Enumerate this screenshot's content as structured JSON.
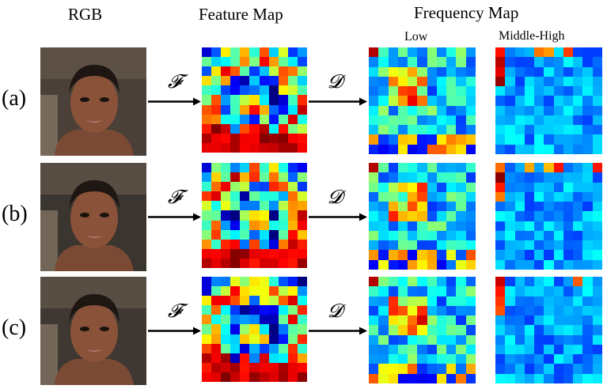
{
  "headers": {
    "rgb": "RGB",
    "feature_map": "Feature Map",
    "frequency_map": "Frequency Map",
    "low": "Low",
    "middle_high": "Middle-High"
  },
  "operators": {
    "transform": "𝓕",
    "decompose": "𝓓"
  },
  "rows": [
    {
      "label": "(a)",
      "bg": "#4a4038"
    },
    {
      "label": "(b)",
      "bg": "#3b3530"
    },
    {
      "label": "(c)",
      "bg": "#3e3732"
    }
  ],
  "colors": {
    "arrow": "#000000"
  }
}
